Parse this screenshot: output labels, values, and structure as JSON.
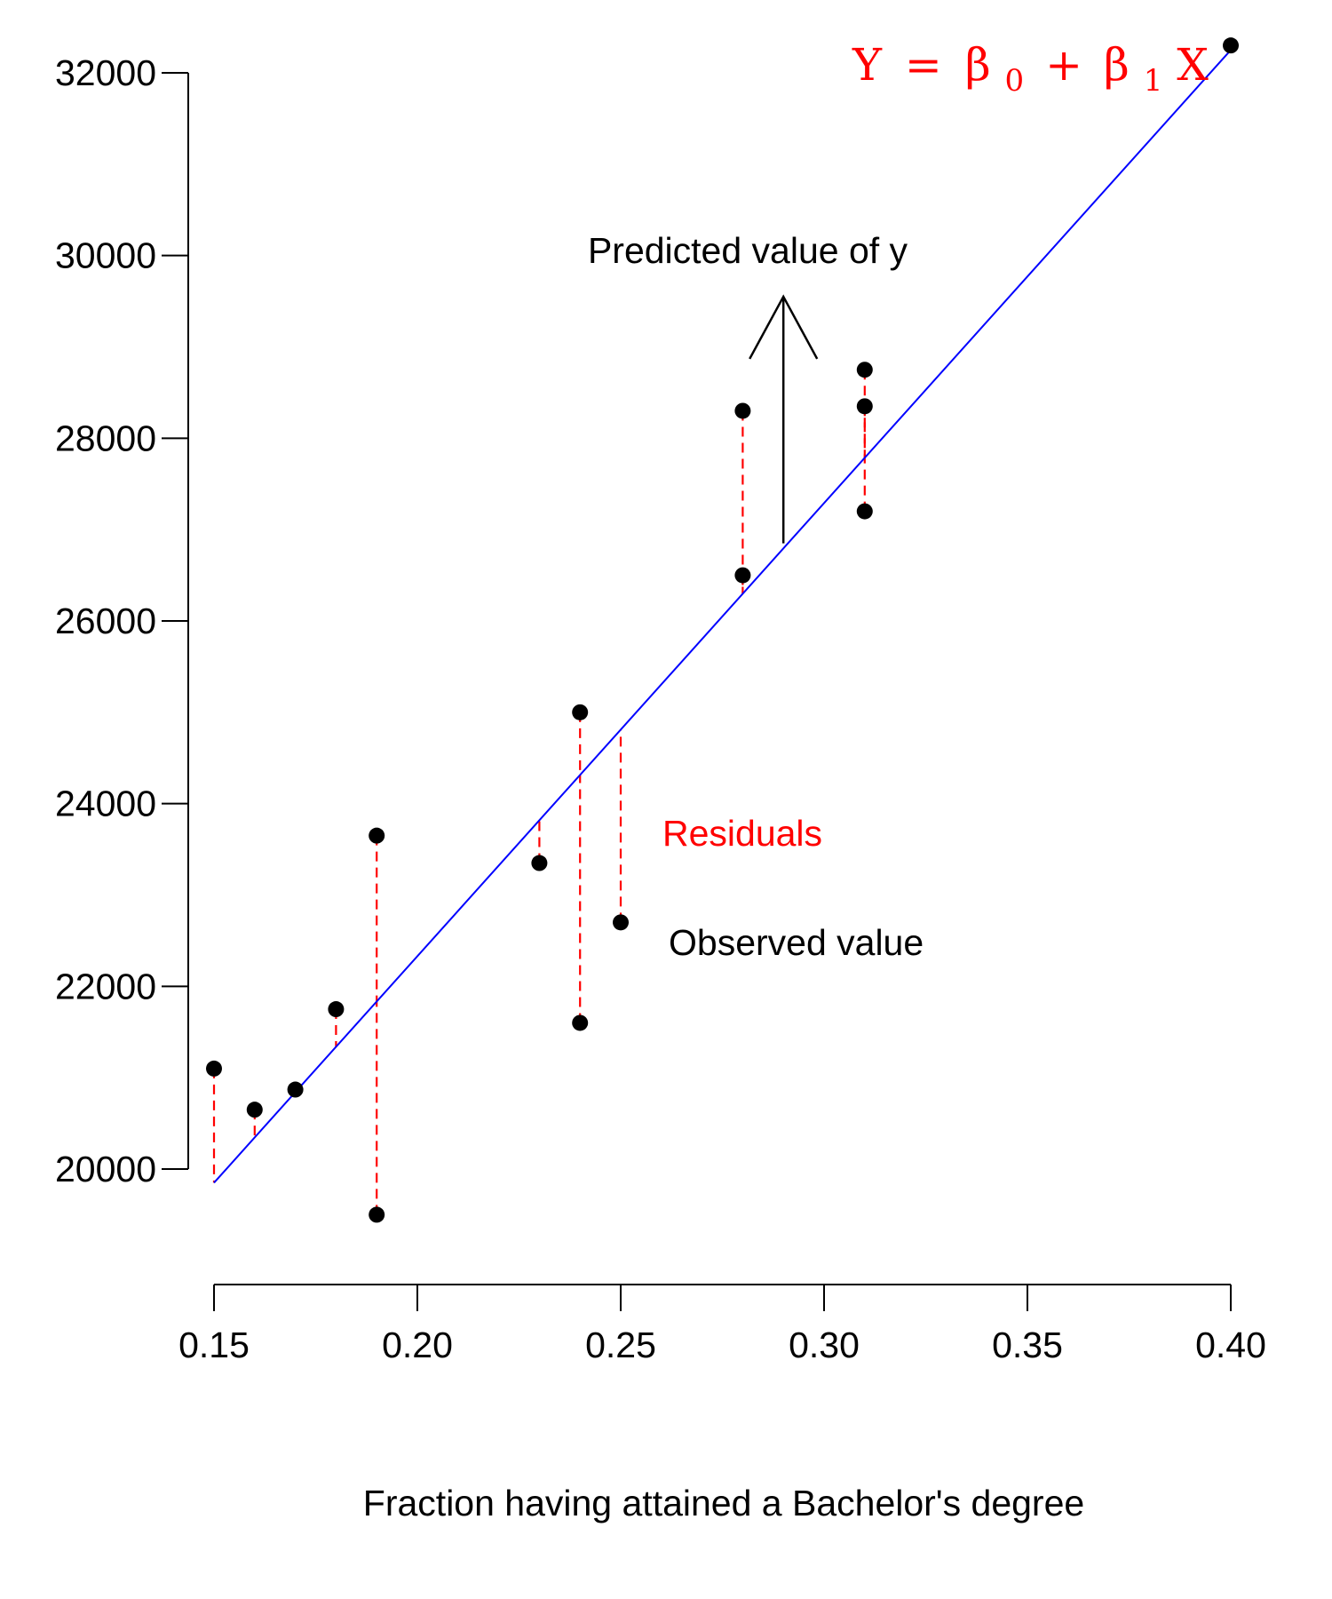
{
  "chart_data": {
    "type": "scatter",
    "title": "",
    "xlabel": "Fraction having attained a Bachelor's degree",
    "ylabel": "",
    "xlim": [
      0.15,
      0.4
    ],
    "ylim": [
      19000,
      32500
    ],
    "x_ticks": [
      0.15,
      0.2,
      0.25,
      0.3,
      0.35,
      0.4
    ],
    "x_tick_labels": [
      "0.15",
      "0.20",
      "0.25",
      "0.30",
      "0.35",
      "0.40"
    ],
    "y_ticks": [
      20000,
      22000,
      24000,
      26000,
      28000,
      30000,
      32000
    ],
    "y_tick_labels": [
      "20000",
      "22000",
      "24000",
      "26000",
      "28000",
      "30000",
      "32000"
    ],
    "grid": false,
    "points": [
      {
        "x": 0.15,
        "y": 21100
      },
      {
        "x": 0.16,
        "y": 20650
      },
      {
        "x": 0.17,
        "y": 20870
      },
      {
        "x": 0.18,
        "y": 21750
      },
      {
        "x": 0.19,
        "y": 23650
      },
      {
        "x": 0.19,
        "y": 19500
      },
      {
        "x": 0.23,
        "y": 23350
      },
      {
        "x": 0.24,
        "y": 25000
      },
      {
        "x": 0.24,
        "y": 21600
      },
      {
        "x": 0.25,
        "y": 22700
      },
      {
        "x": 0.28,
        "y": 28300
      },
      {
        "x": 0.28,
        "y": 26500
      },
      {
        "x": 0.31,
        "y": 28750
      },
      {
        "x": 0.31,
        "y": 28350
      },
      {
        "x": 0.31,
        "y": 27200
      },
      {
        "x": 0.4,
        "y": 32300
      }
    ],
    "regression_line": {
      "x": [
        0.15,
        0.4
      ],
      "y": [
        19850,
        32250
      ],
      "color": "#0000ff"
    },
    "residual_color": "#ff0000",
    "point_color": "#000000",
    "annotations": {
      "predicted": "Predicted value of y",
      "residuals": "Residuals",
      "observed": "Observed value"
    },
    "equation": {
      "y": "Y",
      "equals": "=",
      "beta": "β",
      "sub0": "0",
      "plus": "+",
      "sub1": "1",
      "x": "X",
      "color": "#ff0000"
    },
    "predicted_arrow": {
      "x": 0.29,
      "y_from": 26850,
      "y_to": 29550
    }
  }
}
